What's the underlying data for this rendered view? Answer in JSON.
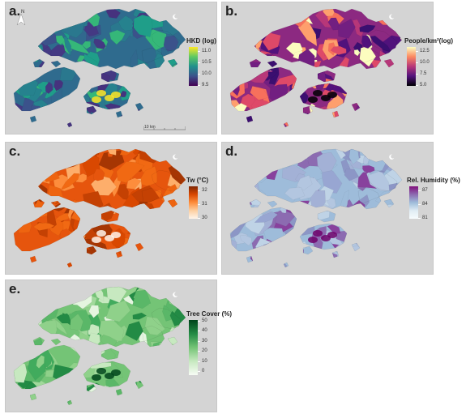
{
  "panels": [
    {
      "id": "a",
      "label": "a.",
      "legend_title": "HKD (log)",
      "ticks": [
        "11.0",
        "10.5",
        "10.0",
        "9.5"
      ],
      "gradient": [
        "#fde725",
        "#5ec962",
        "#21918c",
        "#3b528b",
        "#440154"
      ],
      "base_color": "#2f6b8e",
      "colors": [
        "#31688e",
        "#2a788e",
        "#3b528b",
        "#443983",
        "#26828e",
        "#1f9e89",
        "#46327e",
        "#35b779"
      ],
      "accent_color": "#fde725",
      "scalebar_label": "10 km",
      "north_label": "N"
    },
    {
      "id": "b",
      "label": "b.",
      "legend_title": "People/km²(log)",
      "ticks": [
        "12.5",
        "10.0",
        "7.5",
        "5.0"
      ],
      "gradient": [
        "#fcfdbf",
        "#fc8961",
        "#b73779",
        "#51127c",
        "#000004"
      ],
      "base_color": "#8c2981",
      "colors": [
        "#b73779",
        "#de4968",
        "#fe9f6d",
        "#721f81",
        "#f7705c",
        "#fcfdbf",
        "#51127c",
        "#3b0f70"
      ],
      "accent_color": "#000004"
    },
    {
      "id": "c",
      "label": "c.",
      "legend_title": "Tw (°C)",
      "ticks": [
        "32",
        "31",
        "30"
      ],
      "gradient": [
        "#7f2704",
        "#d94801",
        "#fd8d3c",
        "#fdd0a2",
        "#fff5eb"
      ],
      "base_color": "#e6550d",
      "colors": [
        "#d94801",
        "#a63603",
        "#f16913",
        "#e6550d",
        "#fd8d3c",
        "#c44103",
        "#ee6410",
        "#fdae6b"
      ],
      "accent_color": "#fff5eb"
    },
    {
      "id": "d",
      "label": "d.",
      "legend_title": "Rel. Humidity (%)",
      "ticks": [
        "87",
        "84",
        "81"
      ],
      "gradient": [
        "#810f7c",
        "#8c6bb1",
        "#9ebcda",
        "#e0ecf4",
        "#f7fcfd"
      ],
      "base_color": "#9ebcda",
      "colors": [
        "#8c96c6",
        "#9ebcda",
        "#8c6bb1",
        "#bfd3e6",
        "#a3b1d6",
        "#88419d",
        "#b3c6e0",
        "#98a6d2"
      ],
      "accent_color": "#6e016b"
    },
    {
      "id": "e",
      "label": "e.",
      "legend_title": "Tree Cover (%)",
      "ticks": [
        "50",
        "40",
        "30",
        "20",
        "10",
        "0"
      ],
      "gradient": [
        "#00441b",
        "#238b45",
        "#74c476",
        "#c7e9c0",
        "#f7fcf5"
      ],
      "base_color": "#74c476",
      "colors": [
        "#a1d99b",
        "#74c476",
        "#41ab5d",
        "#c7e9c0",
        "#238b45",
        "#e5f5e0",
        "#5ab768",
        "#8fd18a"
      ],
      "accent_color": "#00441b"
    }
  ]
}
